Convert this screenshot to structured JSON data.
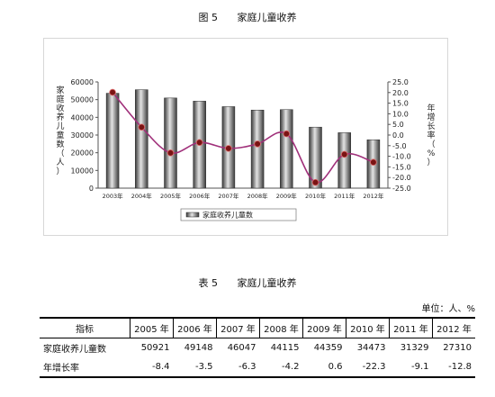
{
  "figure": {
    "number": "图 5",
    "title": "家庭儿童收养"
  },
  "chart_data": {
    "type": "bar",
    "categories": [
      "2003年",
      "2004年",
      "2005年",
      "2006年",
      "2007年",
      "2008年",
      "2009年",
      "2010年",
      "2011年",
      "2012年"
    ],
    "series": [
      {
        "name": "家庭收养儿童数",
        "type": "bar",
        "axis": "left",
        "values": [
          53600,
          55600,
          50921,
          49148,
          46047,
          44115,
          44359,
          34473,
          31329,
          27310
        ]
      },
      {
        "name": "年增长率",
        "type": "line",
        "axis": "right",
        "values": [
          20.1,
          3.7,
          -8.4,
          -3.5,
          -6.3,
          -4.2,
          0.6,
          -22.3,
          -9.1,
          -12.8
        ]
      }
    ],
    "left_axis": {
      "label_chars": [
        "家",
        "庭",
        "收",
        "养",
        "儿",
        "童",
        "数",
        "（",
        "人",
        "）"
      ],
      "min": 0,
      "max": 60000,
      "step": 10000
    },
    "right_axis": {
      "label_chars": [
        "年",
        "增",
        "长",
        "率",
        "（",
        "%",
        "）"
      ],
      "min": -25,
      "max": 25,
      "step": 5
    },
    "left_ticks": [
      "0",
      "10000",
      "20000",
      "30000",
      "40000",
      "50000",
      "60000"
    ],
    "right_ticks": [
      "-25.0",
      "-20.0",
      "-15.0",
      "-10.0",
      "-5.0",
      "0.0",
      "5.0",
      "10.0",
      "15.0",
      "20.0",
      "25.0"
    ],
    "legend": {
      "label": "家庭收养儿童数",
      "placement": "bottom"
    },
    "colors": {
      "bar_dark": "#3a3a3a",
      "bar_light": "#e4e4e4",
      "line": "#a0307a",
      "marker": "#7a1414"
    }
  },
  "table": {
    "number": "表 5",
    "title": "家庭儿童收养",
    "unit": "单位：人、%",
    "header": [
      "指标",
      "2005 年",
      "2006 年",
      "2007 年",
      "2008 年",
      "2009 年",
      "2010 年",
      "2011 年",
      "2012 年"
    ],
    "rows": [
      {
        "label": "家庭收养儿童数",
        "values": [
          "50921",
          "49148",
          "46047",
          "44115",
          "44359",
          "34473",
          "31329",
          "27310"
        ]
      },
      {
        "label": "年增长率",
        "values": [
          "-8.4",
          "-3.5",
          "-6.3",
          "-4.2",
          "0.6",
          "-22.3",
          "-9.1",
          "-12.8"
        ]
      }
    ]
  }
}
